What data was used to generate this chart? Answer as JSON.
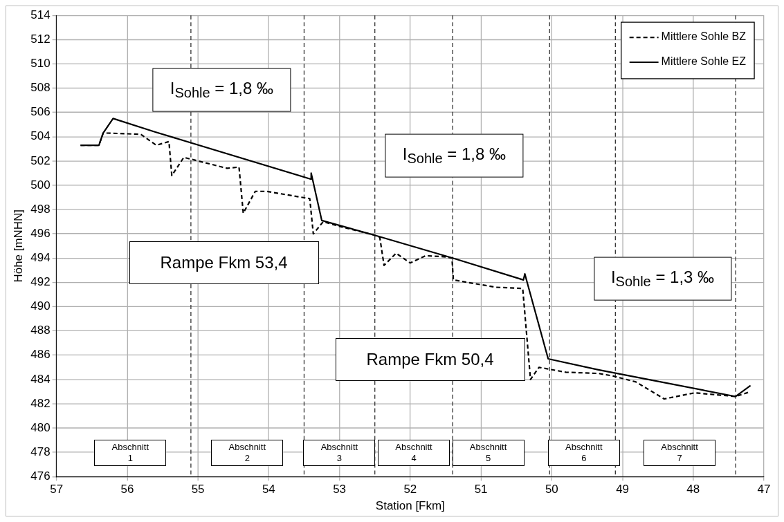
{
  "chart_data": {
    "type": "line",
    "xlabel": "Station [Fkm]",
    "ylabel": "Höhe [mNHN]",
    "xlim": [
      57,
      47
    ],
    "xticks": [
      57,
      56,
      55,
      54,
      53,
      52,
      51,
      50,
      49,
      48,
      47
    ],
    "ylim": [
      476,
      514
    ],
    "yticks": [
      476,
      478,
      480,
      482,
      484,
      486,
      488,
      490,
      492,
      494,
      496,
      498,
      500,
      502,
      504,
      506,
      508,
      510,
      512,
      514
    ],
    "grid": true,
    "legend": "top right",
    "marker": "none",
    "series": [
      {
        "name": "Mittlere Sohle BZ",
        "color": "#000000",
        "line_style": "dashed",
        "x": [
          56.66,
          56.4,
          56.34,
          56.27,
          55.81,
          55.59,
          55.41,
          55.37,
          55.2,
          54.59,
          54.42,
          54.36,
          54.19,
          54.03,
          53.42,
          53.37,
          53.23,
          52.99,
          52.51,
          52.43,
          52.37,
          52.2,
          52.0,
          51.78,
          51.5,
          51.41,
          51.39,
          50.79,
          50.41,
          50.3,
          50.18,
          49.8,
          49.34,
          49.14,
          48.81,
          48.41,
          47.98,
          47.4,
          47.19
        ],
        "values": [
          503.3,
          503.3,
          504.3,
          504.3,
          504.2,
          503.3,
          503.6,
          500.8,
          502.3,
          501.4,
          501.5,
          497.7,
          499.5,
          499.5,
          498.9,
          496.0,
          497.0,
          496.6,
          495.9,
          495.7,
          493.4,
          494.4,
          493.6,
          494.2,
          494.1,
          494.0,
          492.2,
          491.6,
          491.5,
          484.0,
          485.0,
          484.6,
          484.5,
          484.3,
          483.8,
          482.4,
          482.9,
          482.6,
          483.0
        ]
      },
      {
        "name": "Mittlere Sohle EZ",
        "color": "#000000",
        "line_style": "solid",
        "x": [
          56.66,
          56.4,
          56.34,
          56.2,
          55.61,
          53.4,
          53.4,
          53.25,
          52.51,
          51.4,
          50.4,
          50.38,
          50.05,
          49.34,
          47.4,
          47.19
        ],
        "values": [
          503.3,
          503.3,
          504.3,
          505.5,
          504.4,
          500.5,
          501.0,
          497.1,
          495.9,
          494.0,
          492.2,
          492.7,
          485.7,
          484.8,
          482.6,
          483.5
        ]
      }
    ],
    "ref_lines": [
      {
        "axis": "x",
        "value": 55.1,
        "color": "#333333",
        "line_style": "dashed"
      },
      {
        "axis": "x",
        "value": 53.5,
        "color": "#333333",
        "line_style": "dashed"
      },
      {
        "axis": "x",
        "value": 52.5,
        "color": "#333333",
        "line_style": "dashed"
      },
      {
        "axis": "x",
        "value": 51.4,
        "color": "#333333",
        "line_style": "dashed"
      },
      {
        "axis": "x",
        "value": 50.03,
        "color": "#333333",
        "line_style": "dashed"
      },
      {
        "axis": "x",
        "value": 49.1,
        "color": "#333333",
        "line_style": "dashed"
      },
      {
        "axis": "x",
        "value": 47.4,
        "color": "#333333",
        "line_style": "dashed"
      }
    ],
    "annotations": [
      "I$_{Sohle}$ = 1,8 ‰",
      "I$_{Sohle}$ = 1,8 ‰",
      "I$_{Sohle}$ = 1,3 ‰",
      "Rampe Fkm 53,4",
      "Rampe Fkm 50,4",
      "Abschnitt 1",
      "Abschnitt 2",
      "Abschnitt 3",
      "Abschnitt 4",
      "Abschnitt 5",
      "Abschnitt 6",
      "Abschnitt 7"
    ]
  }
}
